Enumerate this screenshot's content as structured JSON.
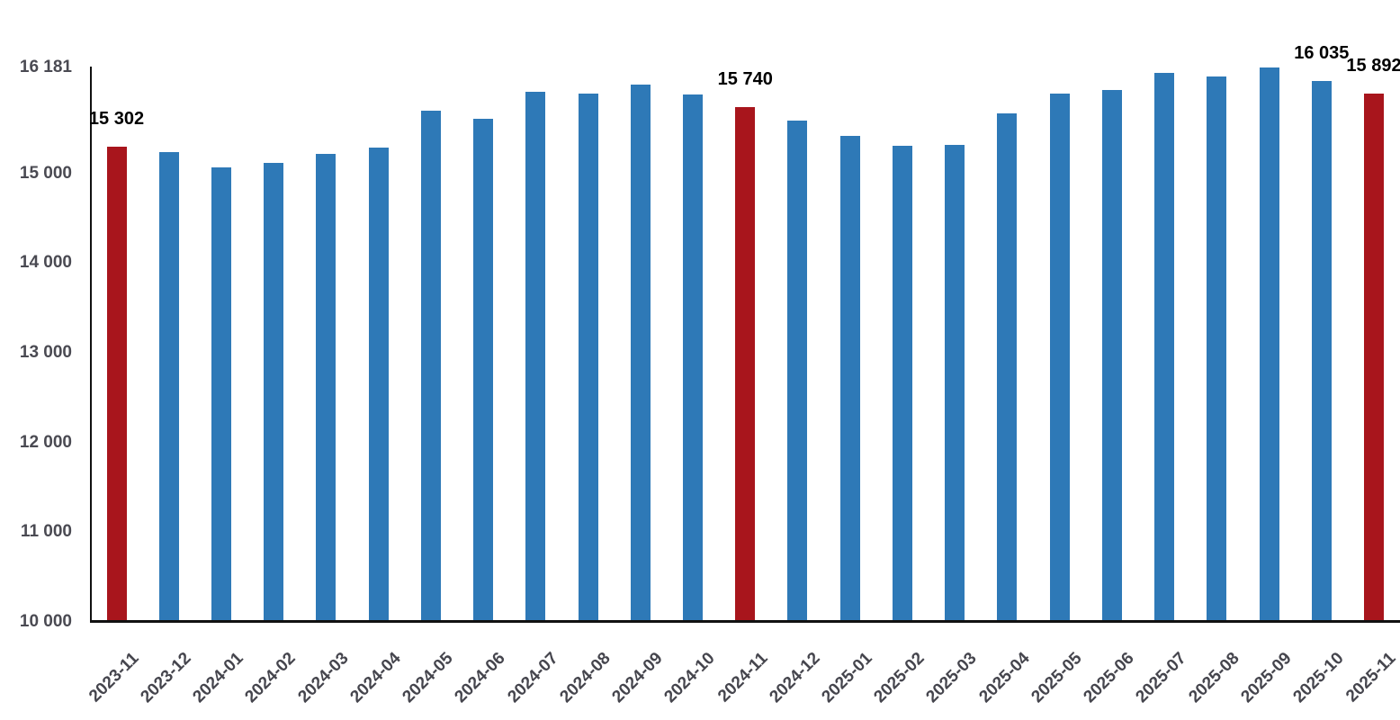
{
  "chart_data": {
    "type": "bar",
    "title": "",
    "xlabel": "",
    "ylabel": "",
    "grid": false,
    "legend": false,
    "categories": [
      "2023-11",
      "2023-12",
      "2024-01",
      "2024-02",
      "2024-03",
      "2024-04",
      "2024-05",
      "2024-06",
      "2024-07",
      "2024-08",
      "2024-09",
      "2024-10",
      "2024-11",
      "2024-12",
      "2025-01",
      "2025-02",
      "2025-03",
      "2025-04",
      "2025-05",
      "2025-06",
      "2025-07",
      "2025-08",
      "2025-09",
      "2025-10",
      "2025-11"
    ],
    "values": [
      15302,
      15240,
      15070,
      15120,
      15220,
      15290,
      15700,
      15610,
      15915,
      15895,
      15995,
      15875,
      15740,
      15585,
      15415,
      15310,
      15320,
      15665,
      15885,
      15935,
      16125,
      16085,
      16181,
      16035,
      15892
    ],
    "highlight_indices": [
      0,
      12,
      24
    ],
    "colors": {
      "bar_default": "#2e79b7",
      "bar_highlight": "#a8151c",
      "axis_line": "#111111",
      "y_tick_text": "#4a4a52",
      "x_tick_text": "#45454d",
      "data_label_text": "#000000"
    },
    "y_axis": {
      "min": 10000,
      "max": 16181,
      "ticks": [
        {
          "value": 16181,
          "label": "16 181"
        },
        {
          "value": 15000,
          "label": "15 000"
        },
        {
          "value": 14000,
          "label": "14 000"
        },
        {
          "value": 13000,
          "label": "13 000"
        },
        {
          "value": 12000,
          "label": "12 000"
        },
        {
          "value": 11000,
          "label": "11 000"
        },
        {
          "value": 10000,
          "label": "10 000"
        }
      ]
    },
    "data_labels": [
      {
        "index": 0,
        "text": "15 302"
      },
      {
        "index": 12,
        "text": "15 740"
      },
      {
        "index": 23,
        "text": "16 035"
      },
      {
        "index": 24,
        "text": "15 892"
      }
    ]
  }
}
